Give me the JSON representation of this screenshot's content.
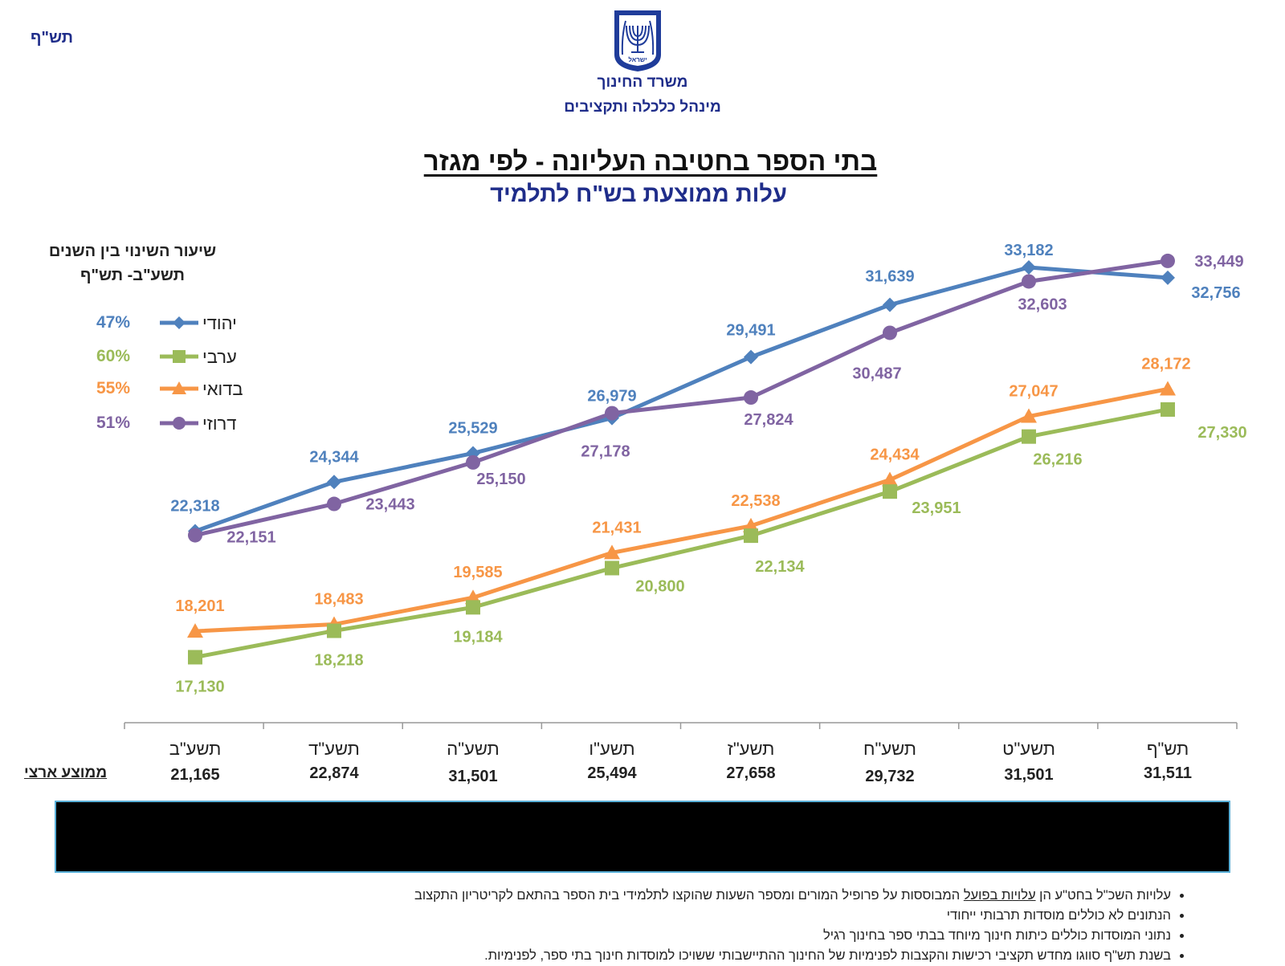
{
  "header": {
    "corner_label": "תש\"ף",
    "ministry_line1": "משרד החינוך",
    "ministry_line2": "מינהל כלכלה ותקציבים",
    "emblem_text": "ישראל"
  },
  "title": "בתי הספר בחטיבה העליונה - לפי מגזר",
  "subtitle": "עלות ממוצעת בש\"ח לתלמיד",
  "legend": {
    "title_line1": "שיעור השינוי בין השנים",
    "title_line2": "תשע\"ב- תש\"ף",
    "items": [
      {
        "name": "יהודי",
        "pct": "47%",
        "color": "#4f81bd",
        "marker": "diamond"
      },
      {
        "name": "ערבי",
        "pct": "60%",
        "color": "#9bbb59",
        "marker": "square"
      },
      {
        "name": "בדואי",
        "pct": "55%",
        "color": "#f79646",
        "marker": "triangle"
      },
      {
        "name": "דרוזי",
        "pct": "51%",
        "color": "#8064a2",
        "marker": "circle"
      }
    ]
  },
  "chart_data": {
    "type": "line",
    "title": "בתי הספר בחטיבה העליונה - לפי מגזר",
    "ylabel": "עלות ממוצעת בש\"ח לתלמיד",
    "categories": [
      "תשע\"ב",
      "תשע\"ד",
      "תשע\"ה",
      "תשע\"ו",
      "תשע\"ז",
      "תשע\"ח",
      "תשע\"ט",
      "תש\"ף"
    ],
    "ylim": [
      14500,
      35000
    ],
    "series": [
      {
        "name": "יהודי",
        "color": "#4f81bd",
        "marker": "diamond",
        "labels_pos": "above",
        "values": [
          22318,
          24344,
          25529,
          26979,
          29491,
          31639,
          33182,
          32756
        ],
        "labels": [
          "22,318",
          "24,344",
          "25,529",
          "26,979",
          "29,491",
          "31,639",
          "33,182",
          "32,756"
        ]
      },
      {
        "name": "דרוזי",
        "color": "#8064a2",
        "marker": "circle",
        "labels_pos": "below",
        "values": [
          22151,
          23443,
          25150,
          27178,
          27824,
          30487,
          32603,
          33449
        ],
        "labels": [
          "22,151",
          "23,443",
          "25,150",
          "27,178",
          "27,824",
          "30,487",
          "32,603",
          "33,449"
        ]
      },
      {
        "name": "בדואי",
        "color": "#f79646",
        "marker": "triangle",
        "labels_pos": "above",
        "values": [
          18201,
          18483,
          19585,
          21431,
          22538,
          24434,
          27047,
          28172
        ],
        "labels": [
          "18,201",
          "18,483",
          "19,585",
          "21,431",
          "22,538",
          "24,434",
          "27,047",
          "28,172"
        ]
      },
      {
        "name": "ערבי",
        "color": "#9bbb59",
        "marker": "square",
        "labels_pos": "below",
        "values": [
          17130,
          18218,
          19184,
          20800,
          22134,
          23951,
          26216,
          27330
        ],
        "labels": [
          "17,130",
          "18,218",
          "19,184",
          "20,800",
          "22,134",
          "23,951",
          "26,216",
          "27,330"
        ]
      }
    ],
    "national_average": {
      "label": "ממוצע ארצי",
      "values": [
        "21,165",
        "22,874",
        "31,501",
        "25,494",
        "27,658",
        "29,732",
        "31,501",
        "31,511"
      ]
    }
  },
  "notes": [
    {
      "pre": "עלויות השכ\"ל  בחט\"ע הן ",
      "underlined": "עלויות בפועל",
      "post": " המבוססות על פרופיל המורים ומספר השעות שהוקצו לתלמידי בית הספר בהתאם לקריטריון התקצוב"
    },
    {
      "pre": "הנתונים לא כוללים מוסדות תרבותי ייחודי",
      "underlined": "",
      "post": ""
    },
    {
      "pre": "נתוני המוסדות כוללים כיתות חינוך מיוחד בבתי ספר בחינוך רגיל",
      "underlined": "",
      "post": ""
    },
    {
      "pre": "בשנת תש\"ף סווגו מחדש תקציבי רכישות והקצבות לפנימיות של החינוך ההתיישבותי ששויכו למוסדות חינוך בתי ספר, לפנימיות.",
      "underlined": "",
      "post": ""
    }
  ]
}
